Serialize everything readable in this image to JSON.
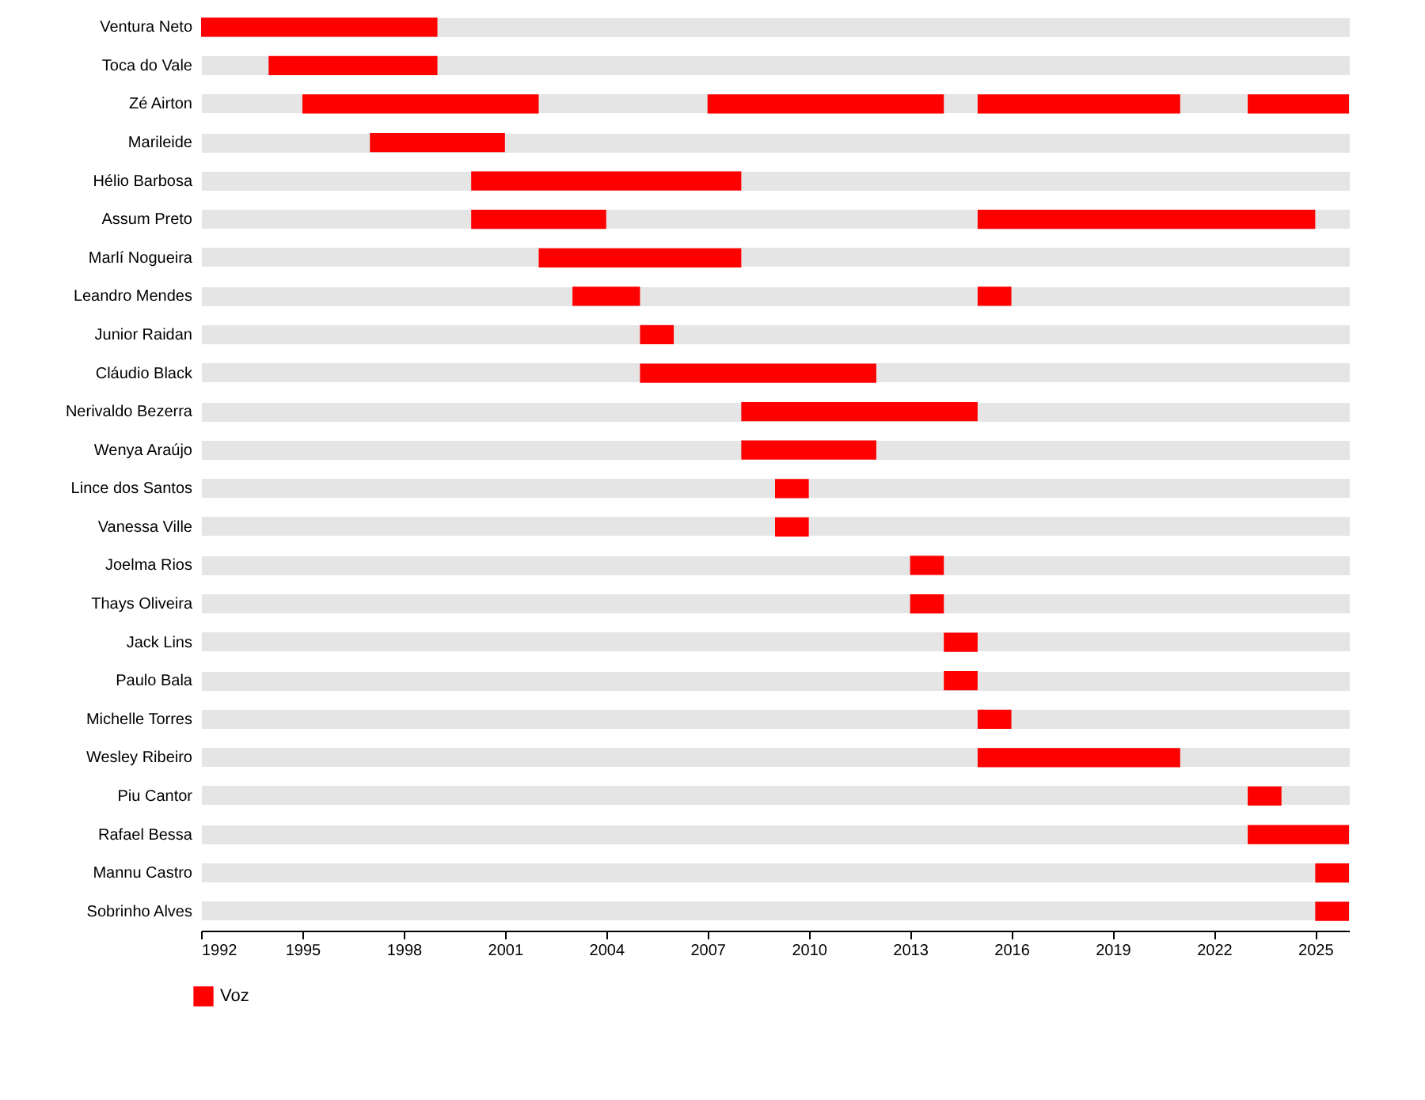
{
  "chart_data": {
    "type": "bar",
    "orientation": "horizontal",
    "legend": "bottom left",
    "grid": "y",
    "categories": [
      "Ventura Neto",
      "Toca do Vale",
      "Zé Airton",
      "Marileide",
      "Hélio Barbosa",
      "Assum Preto",
      "Marlí Nogueira",
      "Leandro Mendes",
      "Junior Raidan",
      "Cláudio Black",
      "Nerivaldo Bezerra",
      "Wenya Araújo",
      "Lince dos Santos",
      "Vanessa Ville",
      "Joelma Rios",
      "Thays Oliveira",
      "Jack Lins",
      "Paulo Bala",
      "Michelle Torres",
      "Wesley Ribeiro",
      "Piu Cantor",
      "Rafael Bessa",
      "Mannu Castro",
      "Sobrinho Alves"
    ],
    "xlim": [
      1992,
      2026
    ],
    "xticks": [
      1992,
      1995,
      1998,
      2001,
      2004,
      2007,
      2010,
      2013,
      2016,
      2019,
      2022,
      2025
    ],
    "series": [
      {
        "name": "Voz",
        "color": "#ff0000",
        "base": [
          1992,
          1994,
          1995,
          1997,
          2000,
          2000,
          2002,
          2003,
          2005,
          2005,
          2008,
          2008,
          2009,
          2009,
          2013,
          2013,
          2014,
          2014,
          2015,
          2015,
          2023,
          2023,
          2025,
          2025
        ],
        "values": [
          7,
          5,
          7,
          4,
          8,
          4,
          6,
          2,
          1,
          7,
          7,
          4,
          1,
          1,
          1,
          1,
          1,
          1,
          1,
          6,
          1,
          3,
          1,
          1
        ]
      },
      {
        "color": "#ff0000",
        "base": [
          null,
          null,
          2007,
          null,
          null,
          2015,
          null,
          2015,
          null,
          null,
          null,
          null,
          null,
          null,
          null,
          null,
          null,
          null,
          null,
          null,
          null,
          null,
          null,
          null
        ],
        "values": [
          null,
          null,
          7,
          null,
          null,
          10,
          null,
          1,
          null,
          null,
          null,
          null,
          null,
          null,
          null,
          null,
          null,
          null,
          null,
          null,
          null,
          null,
          null,
          null
        ]
      },
      {
        "color": "#ff0000",
        "base": [
          null,
          null,
          2015,
          null,
          null,
          null,
          null,
          null,
          null,
          null,
          null,
          null,
          null,
          null,
          null,
          null,
          null,
          null,
          null,
          null,
          null,
          null,
          null,
          null
        ],
        "values": [
          null,
          null,
          6,
          null,
          null,
          null,
          null,
          null,
          null,
          null,
          null,
          null,
          null,
          null,
          null,
          null,
          null,
          null,
          null,
          null,
          null,
          null,
          null,
          null
        ]
      },
      {
        "color": "#ff0000",
        "base": [
          null,
          null,
          2023,
          null,
          null,
          null,
          null,
          null,
          null,
          null,
          null,
          null,
          null,
          null,
          null,
          null,
          null,
          null,
          null,
          null,
          null,
          null,
          null,
          null
        ],
        "values": [
          null,
          null,
          3,
          null,
          null,
          null,
          null,
          null,
          null,
          null,
          null,
          null,
          null,
          null,
          null,
          null,
          null,
          null,
          null,
          null,
          null,
          null,
          null,
          null
        ]
      }
    ]
  }
}
